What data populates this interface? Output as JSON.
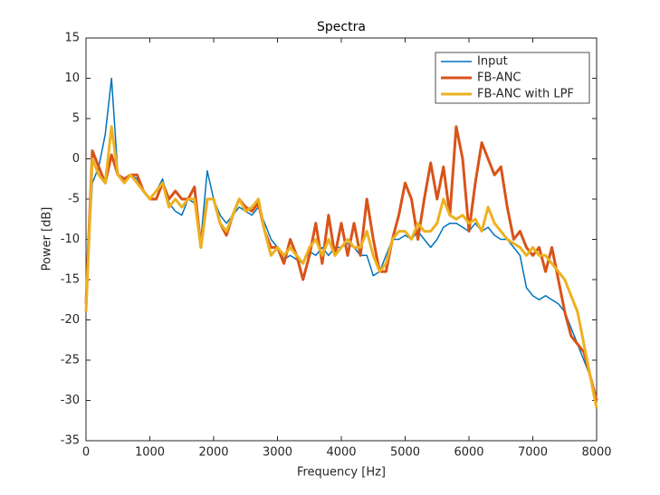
{
  "chart_data": {
    "type": "line",
    "title": "Spectra",
    "x_label": "Frequency [Hz]",
    "y_label": "Power [dB]",
    "x": [
      0,
      100,
      200,
      300,
      400,
      500,
      600,
      700,
      800,
      900,
      1000,
      1100,
      1200,
      1300,
      1400,
      1500,
      1600,
      1700,
      1800,
      1900,
      2000,
      2100,
      2200,
      2300,
      2400,
      2500,
      2600,
      2700,
      2800,
      2900,
      3000,
      3100,
      3200,
      3300,
      3400,
      3500,
      3600,
      3700,
      3800,
      3900,
      4000,
      4100,
      4200,
      4300,
      4400,
      4500,
      4600,
      4700,
      4800,
      4900,
      5000,
      5100,
      5200,
      5300,
      5400,
      5500,
      5600,
      5700,
      5800,
      5900,
      6000,
      6100,
      6200,
      6300,
      6400,
      6500,
      6600,
      6700,
      6800,
      6900,
      7000,
      7100,
      7200,
      7300,
      7400,
      7500,
      7600,
      7700,
      7800,
      7900,
      8000
    ],
    "series": [
      {
        "name": "Input",
        "color": "#0072bd",
        "values": [
          -18,
          -3,
          -1,
          3,
          10,
          -2,
          -2.5,
          -2,
          -2.5,
          -4,
          -5,
          -4,
          -2.5,
          -5.5,
          -6.5,
          -7,
          -5,
          -5.5,
          -10,
          -1.5,
          -5,
          -7,
          -8,
          -7,
          -6,
          -6.5,
          -7,
          -6,
          -8,
          -10,
          -11,
          -12.5,
          -12,
          -12.5,
          -13,
          -11.5,
          -12,
          -11,
          -12,
          -11,
          -11,
          -10.5,
          -11,
          -12,
          -12,
          -14.5,
          -14,
          -12,
          -10,
          -10,
          -9.5,
          -10,
          -9,
          -10,
          -11,
          -10,
          -8.5,
          -8,
          -8,
          -8.5,
          -9,
          -8,
          -9,
          -8.5,
          -9.5,
          -10,
          -10,
          -11,
          -12,
          -16,
          -17,
          -17.5,
          -17,
          -17.5,
          -18,
          -19,
          -21,
          -23,
          -25,
          -27,
          -30
        ]
      },
      {
        "name": "FB-ANC",
        "color": "#d95319",
        "values": [
          -18,
          1,
          -1,
          -3,
          0.5,
          -2,
          -2.5,
          -2,
          -2,
          -4,
          -5,
          -5,
          -3,
          -5,
          -4,
          -5,
          -5,
          -3.5,
          -11,
          -5,
          -5,
          -8,
          -9.5,
          -7,
          -5,
          -6,
          -6.5,
          -5.5,
          -9,
          -11,
          -11,
          -13,
          -10,
          -12,
          -15,
          -12,
          -8,
          -13,
          -7,
          -12,
          -8,
          -12,
          -8,
          -12,
          -5,
          -10,
          -14,
          -14,
          -10,
          -7,
          -3,
          -5,
          -10,
          -5,
          -0.5,
          -5,
          -1,
          -7,
          4,
          0,
          -9,
          -3,
          2,
          0,
          -2,
          -1,
          -6,
          -10,
          -9,
          -11,
          -12,
          -11,
          -14,
          -11,
          -15,
          -19,
          -22,
          -23,
          -24,
          -27,
          -30
        ]
      },
      {
        "name": "FB-ANC with LPF",
        "color": "#edb120",
        "values": [
          -19,
          0,
          -2,
          -3,
          4,
          -2,
          -3,
          -2,
          -3,
          -4,
          -5,
          -4,
          -3,
          -6,
          -5,
          -6,
          -5,
          -5,
          -11,
          -5,
          -5,
          -8,
          -9,
          -7,
          -5,
          -6.5,
          -6,
          -5,
          -9,
          -12,
          -11,
          -12,
          -11,
          -12,
          -13,
          -11,
          -10,
          -12,
          -10,
          -12,
          -11,
          -10,
          -11,
          -11,
          -9,
          -12,
          -14,
          -13,
          -10,
          -9,
          -9,
          -10,
          -8,
          -9,
          -9,
          -8,
          -5,
          -7,
          -7.5,
          -7,
          -8,
          -7.5,
          -9,
          -6,
          -8,
          -9,
          -10,
          -10.5,
          -11,
          -12,
          -11,
          -12,
          -12,
          -13,
          -14,
          -15,
          -17,
          -19,
          -23,
          -27,
          -31
        ]
      }
    ],
    "xlim": [
      0,
      8000
    ],
    "xticks": [
      0,
      1000,
      2000,
      3000,
      4000,
      5000,
      6000,
      7000,
      8000
    ],
    "ylim": [
      -35,
      15
    ],
    "yticks": [
      -35,
      -30,
      -25,
      -20,
      -15,
      -10,
      -5,
      0,
      5,
      10,
      15
    ],
    "grid": false,
    "legend": "northeast"
  }
}
